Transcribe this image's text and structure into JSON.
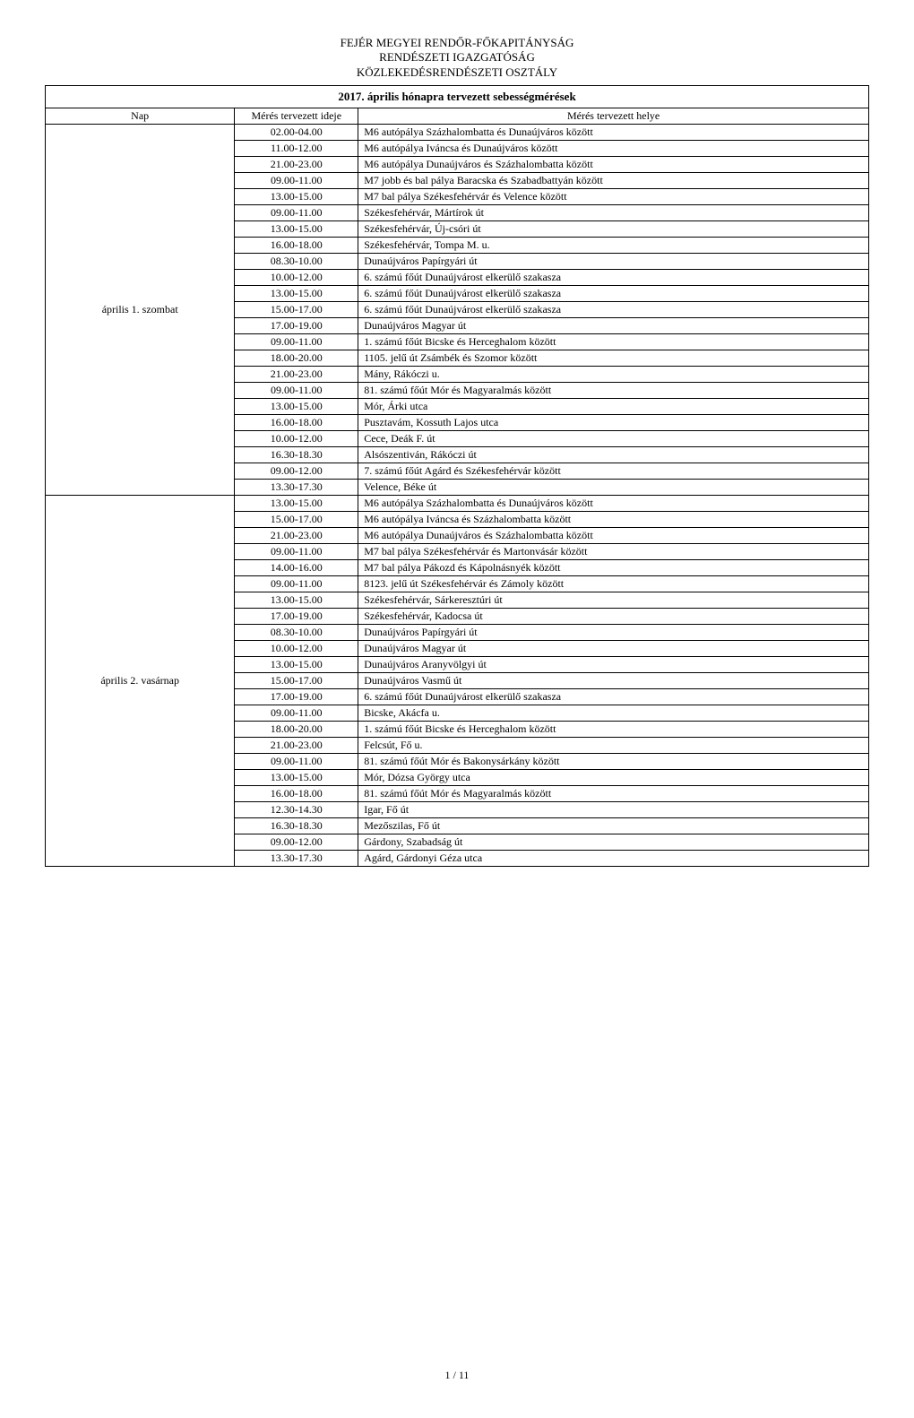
{
  "header": {
    "line1": "FEJÉR MEGYEI RENDŐR-FŐKAPITÁNYSÁG",
    "line2": "RENDÉSZETI IGAZGATÓSÁG",
    "line3": "KÖZLEKEDÉSRENDÉSZETI OSZTÁLY"
  },
  "table": {
    "title": "2017. április hónapra tervezett sebességmérések",
    "columns": {
      "day": "Nap",
      "time": "Mérés tervezett ideje",
      "location": "Mérés tervezett helye"
    },
    "groups": [
      {
        "day": "április 1.  szombat",
        "rows": [
          {
            "time": "02.00-04.00",
            "loc": "M6 autópálya Százhalombatta és Dunaújváros között"
          },
          {
            "time": "11.00-12.00",
            "loc": "M6 autópálya Iváncsa és Dunaújváros között"
          },
          {
            "time": "21.00-23.00",
            "loc": "M6 autópálya Dunaújváros és Százhalombatta között"
          },
          {
            "time": "09.00-11.00",
            "loc": "M7 jobb és bal pálya Baracska és Szabadbattyán között"
          },
          {
            "time": "13.00-15.00",
            "loc": "M7 bal pálya Székesfehérvár és Velence között"
          },
          {
            "time": "09.00-11.00",
            "loc": "Székesfehérvár, Mártírok út"
          },
          {
            "time": "13.00-15.00",
            "loc": "Székesfehérvár, Új-csóri út"
          },
          {
            "time": "16.00-18.00",
            "loc": "Székesfehérvár, Tompa M. u."
          },
          {
            "time": "08.30-10.00",
            "loc": "Dunaújváros Papírgyári út"
          },
          {
            "time": "10.00-12.00",
            "loc": "6. számú főút Dunaújvárost elkerülő szakasza"
          },
          {
            "time": "13.00-15.00",
            "loc": "6. számú főút Dunaújvárost elkerülő szakasza"
          },
          {
            "time": "15.00-17.00",
            "loc": "6. számú főút Dunaújvárost elkerülő szakasza"
          },
          {
            "time": "17.00-19.00",
            "loc": "Dunaújváros Magyar út"
          },
          {
            "time": "09.00-11.00",
            "loc": "1. számú főút Bicske és Herceghalom között"
          },
          {
            "time": "18.00-20.00",
            "loc": "1105. jelű út Zsámbék és Szomor között"
          },
          {
            "time": "21.00-23.00",
            "loc": "Mány, Rákóczi u."
          },
          {
            "time": "09.00-11.00",
            "loc": "81. számú főút Mór és Magyaralmás között"
          },
          {
            "time": "13.00-15.00",
            "loc": "Mór, Árki utca"
          },
          {
            "time": "16.00-18.00",
            "loc": "Pusztavám, Kossuth Lajos utca"
          },
          {
            "time": "10.00-12.00",
            "loc": "Cece, Deák F. út"
          },
          {
            "time": "16.30-18.30",
            "loc": "Alsószentiván, Rákóczi út"
          },
          {
            "time": "09.00-12.00",
            "loc": "7. számú főút Agárd és Székesfehérvár között"
          },
          {
            "time": "13.30-17.30",
            "loc": "Velence, Béke út"
          }
        ]
      },
      {
        "day": "április 2.  vasárnap",
        "rows": [
          {
            "time": "13.00-15.00",
            "loc": "M6 autópálya Százhalombatta és Dunaújváros között"
          },
          {
            "time": "15.00-17.00",
            "loc": "M6 autópálya Iváncsa és Százhalombatta között"
          },
          {
            "time": "21.00-23.00",
            "loc": "M6 autópálya Dunaújváros és Százhalombatta között"
          },
          {
            "time": "09.00-11.00",
            "loc": "M7 bal pálya Székesfehérvár és Martonvásár között"
          },
          {
            "time": "14.00-16.00",
            "loc": "M7 bal pálya Pákozd és Kápolnásnyék között"
          },
          {
            "time": "09.00-11.00",
            "loc": "8123. jelű út Székesfehérvár és Zámoly között"
          },
          {
            "time": "13.00-15.00",
            "loc": "Székesfehérvár, Sárkeresztúri út"
          },
          {
            "time": "17.00-19.00",
            "loc": "Székesfehérvár, Kadocsa út"
          },
          {
            "time": "08.30-10.00",
            "loc": "Dunaújváros Papírgyári út"
          },
          {
            "time": "10.00-12.00",
            "loc": "Dunaújváros Magyar út"
          },
          {
            "time": "13.00-15.00",
            "loc": "Dunaújváros Aranyvölgyi út"
          },
          {
            "time": "15.00-17.00",
            "loc": "Dunaújváros Vasmű út"
          },
          {
            "time": "17.00-19.00",
            "loc": "6. számú főút Dunaújvárost elkerülő szakasza"
          },
          {
            "time": "09.00-11.00",
            "loc": "Bicske, Akácfa u."
          },
          {
            "time": "18.00-20.00",
            "loc": "1. számú főút Bicske és Herceghalom között"
          },
          {
            "time": "21.00-23.00",
            "loc": "Felcsút, Fő u."
          },
          {
            "time": "09.00-11.00",
            "loc": "81. számú főút Mór és Bakonysárkány között"
          },
          {
            "time": "13.00-15.00",
            "loc": "Mór, Dózsa György utca"
          },
          {
            "time": "16.00-18.00",
            "loc": "81. számú főút Mór és Magyaralmás között"
          },
          {
            "time": "12.30-14.30",
            "loc": "Igar, Fő út"
          },
          {
            "time": "16.30-18.30",
            "loc": "Mezőszilas, Fő út"
          },
          {
            "time": "09.00-12.00",
            "loc": "Gárdony, Szabadság út"
          },
          {
            "time": "13.30-17.30",
            "loc": "Agárd, Gárdonyi Géza utca"
          }
        ]
      }
    ]
  },
  "footer": {
    "page": "1 / 11"
  }
}
